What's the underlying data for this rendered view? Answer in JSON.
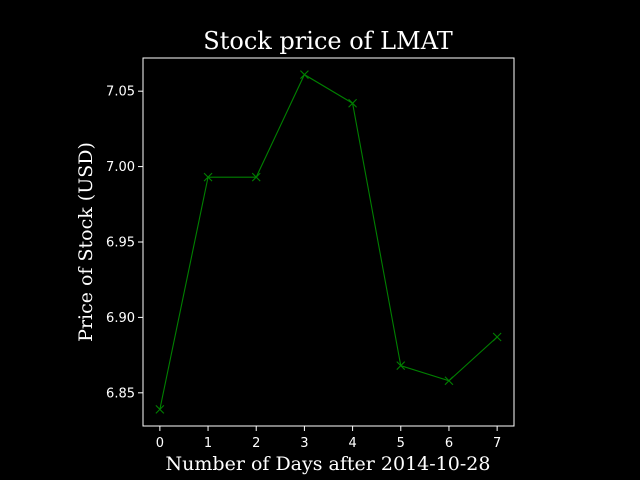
{
  "chart_data": {
    "type": "line",
    "title": "Stock price of LMAT",
    "xlabel": "Number of Days after 2014-10-28",
    "ylabel": "Price of Stock (USD)",
    "x": [
      0,
      1,
      2,
      3,
      4,
      5,
      6,
      7
    ],
    "series": [
      {
        "values": [
          6.839,
          6.993,
          6.993,
          7.061,
          7.042,
          6.868,
          6.858,
          6.887
        ],
        "color": "#008000",
        "marker": "x"
      }
    ],
    "xlim": [
      -0.35,
      7.35
    ],
    "ylim": [
      6.828,
      7.072
    ],
    "xticks": [
      0,
      1,
      2,
      3,
      4,
      5,
      6,
      7
    ],
    "yticks": [
      6.85,
      6.9,
      6.95,
      7.0,
      7.05
    ],
    "ytick_labels": [
      "6.85",
      "6.90",
      "6.95",
      "7.00",
      "7.05"
    ],
    "grid": false,
    "background": "#000000",
    "axis_color": "#ffffff"
  }
}
